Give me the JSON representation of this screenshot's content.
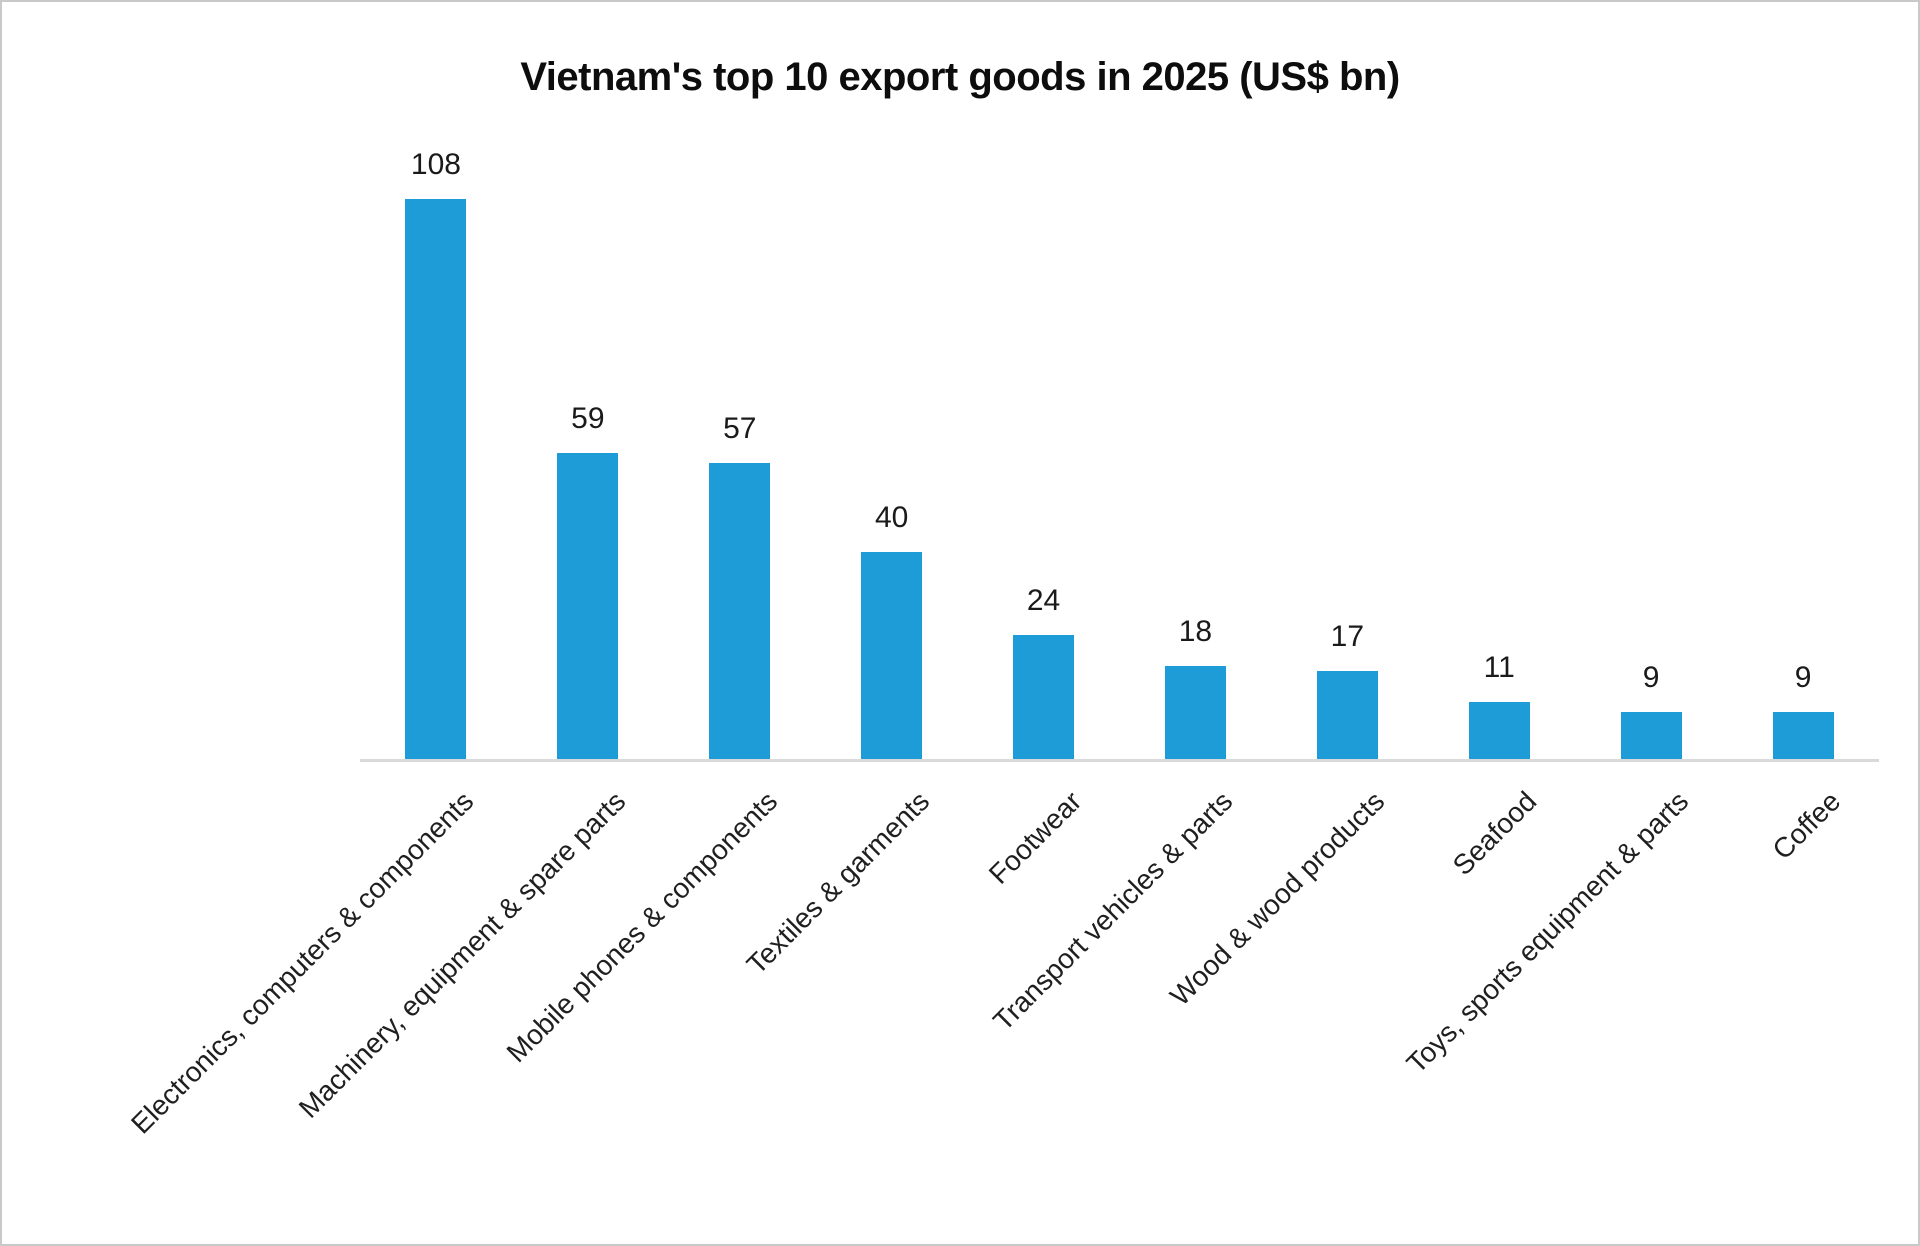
{
  "window": {
    "background_color": "#ffffff",
    "border_color": "#c9c9c9"
  },
  "chart_data": {
    "type": "bar",
    "title": "Vietnam's top 10 export goods in 2025 (US$ bn)",
    "categories": [
      "Electronics, computers & components",
      "Machinery, equipment & spare parts",
      "Mobile phones & components",
      "Textiles & garments",
      "Footwear",
      "Transport vehicles & parts",
      "Wood & wood products",
      "Seafood",
      "Toys, sports equipment & parts",
      "Coffee"
    ],
    "values": [
      108,
      59,
      57,
      40,
      24,
      18,
      17,
      11,
      9,
      9
    ],
    "xlabel": "",
    "ylabel": "",
    "ylim": [
      0,
      115
    ],
    "grid": false,
    "legend": false,
    "data_labels_shown": true,
    "category_label_rotation_deg": -45,
    "bar_color": "#1e9cd8",
    "axis_line_color": "#d9d9d9",
    "value_label_color": "#1a1a1a",
    "category_label_color": "#1f1f1f",
    "title_color": "#0d0d0d"
  }
}
